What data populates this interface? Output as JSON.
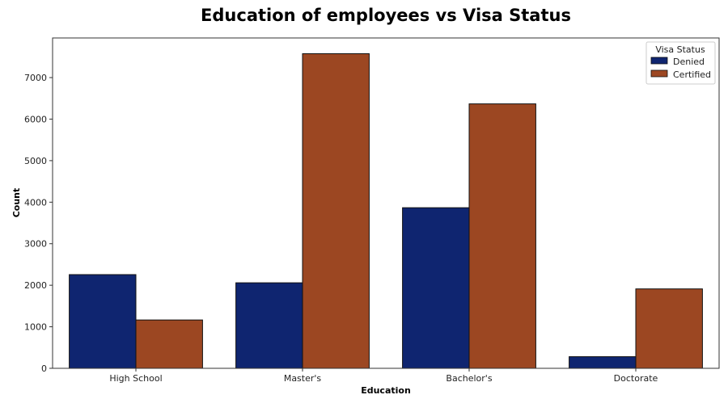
{
  "chart_data": {
    "type": "bar",
    "title": "Education of employees vs Visa Status",
    "xlabel": "Education",
    "ylabel": "Count",
    "categories": [
      "High School",
      "Master's",
      "Bachelor's",
      "Doctorate"
    ],
    "series": [
      {
        "name": "Denied",
        "values": [
          2256,
          2059,
          3867,
          280
        ],
        "color": "#0f2570"
      },
      {
        "name": "Certified",
        "values": [
          1164,
          7575,
          6367,
          1912
        ],
        "color": "#9c4722"
      }
    ],
    "ylim": [
      0,
      7954
    ],
    "yticks": [
      0,
      1000,
      2000,
      3000,
      4000,
      5000,
      6000,
      7000
    ],
    "grid": false,
    "legend": {
      "title": "Visa Status",
      "placement": "top-right"
    }
  }
}
